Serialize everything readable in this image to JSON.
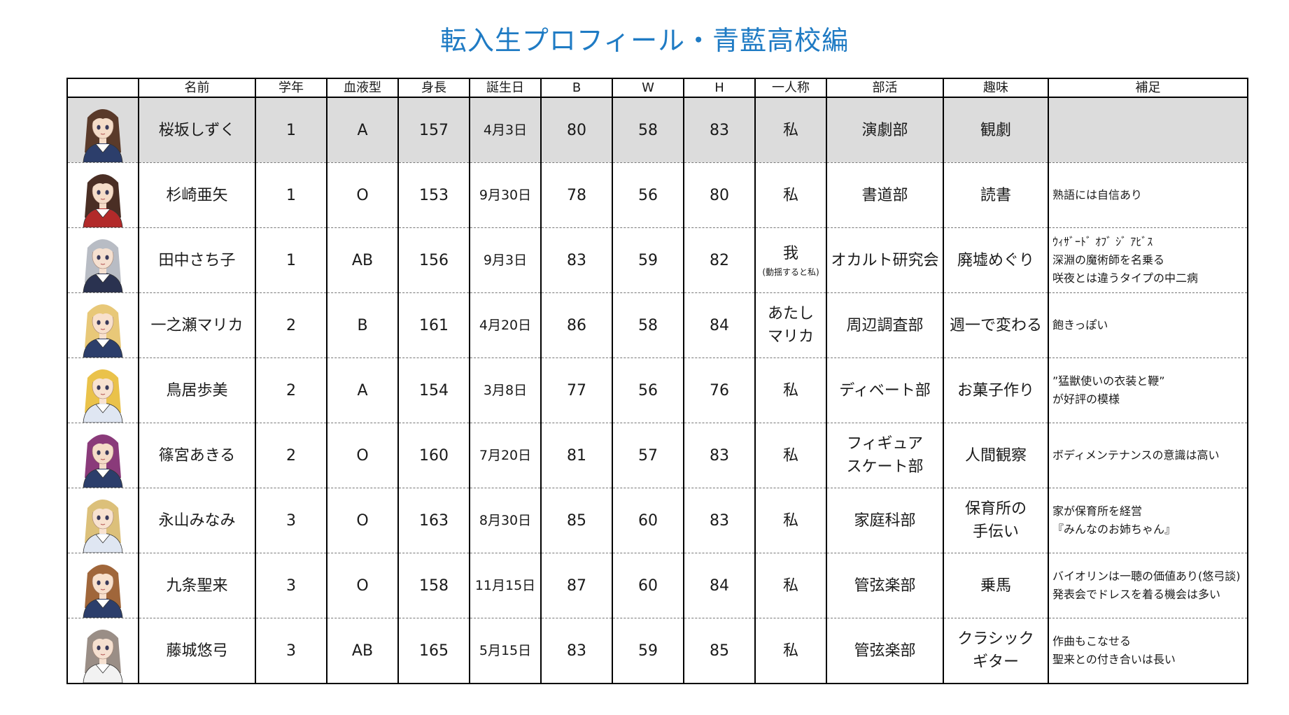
{
  "title": "転入生プロフィール・青藍高校編",
  "headers": {
    "image": "",
    "name": "名前",
    "grade": "学年",
    "blood": "血液型",
    "height": "身長",
    "birthday": "誕生日",
    "b": "B",
    "w": "W",
    "h": "H",
    "pronoun": "一人称",
    "club": "部活",
    "hobby": "趣味",
    "note": "補足"
  },
  "rows": [
    {
      "name": "桜坂しずく",
      "grade": "1",
      "blood": "A",
      "height": "157",
      "birthday": "4月3日",
      "b": "80",
      "w": "58",
      "h": "83",
      "pronoun": [
        "私"
      ],
      "pronoun_sub": "",
      "club": [
        "演劇部"
      ],
      "hobby": [
        "観劇"
      ],
      "note": [],
      "hair": "#5a3a2a",
      "skin": "#f5dcc8",
      "uniform": "#2c3e6b"
    },
    {
      "name": "杉崎亜矢",
      "grade": "1",
      "blood": "O",
      "height": "153",
      "birthday": "9月30日",
      "b": "78",
      "w": "56",
      "h": "80",
      "pronoun": [
        "私"
      ],
      "pronoun_sub": "",
      "club": [
        "書道部"
      ],
      "hobby": [
        "読書"
      ],
      "note": [
        "熟語には自信あり"
      ],
      "hair": "#4a2e24",
      "skin": "#f5dcc8",
      "uniform": "#b22a2a"
    },
    {
      "name": "田中さち子",
      "grade": "1",
      "blood": "AB",
      "height": "156",
      "birthday": "9月3日",
      "b": "83",
      "w": "59",
      "h": "82",
      "pronoun": [
        "我"
      ],
      "pronoun_sub": "(動揺すると私)",
      "club": [
        "オカルト研究会"
      ],
      "hobby": [
        "廃墟めぐり"
      ],
      "note": [
        "ｳｨｻﾞｰﾄﾞ ｵﾌﾞ ｼﾞ ｱﾋﾞｽ",
        "深淵の魔術師を名乗る",
        "咲夜とは違うタイプの中二病"
      ],
      "hair": "#b8bcc4",
      "skin": "#f5e0d0",
      "uniform": "#2a3250"
    },
    {
      "name": "一之瀬マリカ",
      "grade": "2",
      "blood": "B",
      "height": "161",
      "birthday": "4月20日",
      "b": "86",
      "w": "58",
      "h": "84",
      "pronoun": [
        "あたし",
        "マリカ"
      ],
      "pronoun_sub": "",
      "club": [
        "周辺調査部"
      ],
      "hobby": [
        "週一で変わる"
      ],
      "note": [
        "飽きっぽい"
      ],
      "hair": "#e8c878",
      "skin": "#f8e0cc",
      "uniform": "#2c3e6b"
    },
    {
      "name": "鳥居歩美",
      "grade": "2",
      "blood": "A",
      "height": "154",
      "birthday": "3月8日",
      "b": "77",
      "w": "56",
      "h": "76",
      "pronoun": [
        "私"
      ],
      "pronoun_sub": "",
      "club": [
        "ディベート部"
      ],
      "hobby": [
        "お菓子作り"
      ],
      "note": [
        "”猛獣使いの衣装と鞭”",
        "が好評の模様"
      ],
      "hair": "#eac24a",
      "skin": "#f8e2d0",
      "uniform": "#dfe6f2"
    },
    {
      "name": "篠宮あきる",
      "grade": "2",
      "blood": "O",
      "height": "160",
      "birthday": "7月20日",
      "b": "81",
      "w": "57",
      "h": "83",
      "pronoun": [
        "私"
      ],
      "pronoun_sub": "",
      "club": [
        "フィギュア",
        "スケート部"
      ],
      "hobby": [
        "人間観察"
      ],
      "note": [
        "ボディメンテナンスの意識は高い"
      ],
      "hair": "#8a3a7a",
      "skin": "#f5dcc8",
      "uniform": "#2c3e6b"
    },
    {
      "name": "永山みなみ",
      "grade": "3",
      "blood": "O",
      "height": "163",
      "birthday": "8月30日",
      "b": "85",
      "w": "60",
      "h": "83",
      "pronoun": [
        "私"
      ],
      "pronoun_sub": "",
      "club": [
        "家庭科部"
      ],
      "hobby": [
        "保育所の",
        "手伝い"
      ],
      "note": [
        "家が保育所を経営",
        "『みんなのお姉ちゃん』"
      ],
      "hair": "#dcc07a",
      "skin": "#f8e2d0",
      "uniform": "#dfe6f2"
    },
    {
      "name": "九条聖来",
      "grade": "3",
      "blood": "O",
      "height": "158",
      "birthday": "11月15日",
      "b": "87",
      "w": "60",
      "h": "84",
      "pronoun": [
        "私"
      ],
      "pronoun_sub": "",
      "club": [
        "管弦楽部"
      ],
      "hobby": [
        "乗馬"
      ],
      "note": [
        "バイオリンは一聴の価値あり(悠弓談)",
        "発表会でドレスを着る機会は多い"
      ],
      "hair": "#a0663a",
      "skin": "#f8e0cc",
      "uniform": "#2c3e6b"
    },
    {
      "name": "藤城悠弓",
      "grade": "3",
      "blood": "AB",
      "height": "165",
      "birthday": "5月15日",
      "b": "83",
      "w": "59",
      "h": "85",
      "pronoun": [
        "私"
      ],
      "pronoun_sub": "",
      "club": [
        "管弦楽部"
      ],
      "hobby": [
        "クラシック",
        "ギター"
      ],
      "note": [
        "作曲もこなせる",
        "聖来との付き合いは長い"
      ],
      "hair": "#9a8e86",
      "skin": "#f5e0d0",
      "uniform": "#f2f2f2"
    }
  ]
}
